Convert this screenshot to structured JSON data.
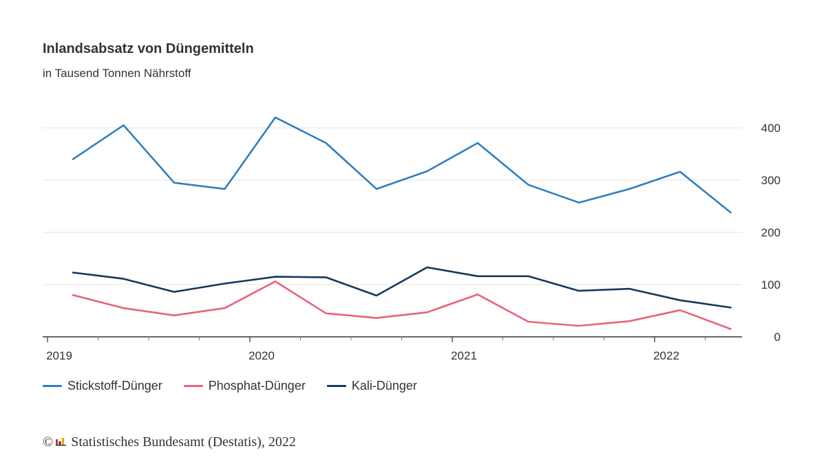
{
  "header": {
    "title": "Inlandsabsatz von Düngemitteln",
    "subtitle": "in Tausend Tonnen Nährstoff"
  },
  "footer": {
    "copyright_symbol": "©",
    "logo_icon": "destatis-logo-icon",
    "source": "Statistisches Bundesamt (Destatis), 2022"
  },
  "chart_data": {
    "type": "line",
    "title": "Inlandsabsatz von Düngemitteln",
    "subtitle": "in Tausend Tonnen Nährstoff",
    "x": [
      "2019 Q1",
      "2019 Q2",
      "2019 Q3",
      "2019 Q4",
      "2020 Q1",
      "2020 Q2",
      "2020 Q3",
      "2020 Q4",
      "2021 Q1",
      "2021 Q2",
      "2021 Q3",
      "2021 Q4",
      "2022 Q1",
      "2022 Q2"
    ],
    "x_tick_labels": [
      "2019",
      "2020",
      "2021",
      "2022"
    ],
    "y_ticks": [
      0,
      100,
      200,
      300,
      400
    ],
    "ylim": [
      0,
      400
    ],
    "y_axis_side": "right",
    "grid": true,
    "legend_position": "bottom-left",
    "series": [
      {
        "name": "Stickstoff-Dünger",
        "color": "#2e7ebf",
        "values": [
          340,
          405,
          295,
          283,
          420,
          371,
          283,
          317,
          371,
          291,
          257,
          283,
          316,
          238
        ]
      },
      {
        "name": "Phosphat-Dünger",
        "color": "#e8627a",
        "values": [
          80,
          55,
          41,
          55,
          106,
          45,
          36,
          47,
          81,
          29,
          21,
          30,
          51,
          15
        ]
      },
      {
        "name": "Kali-Dünger",
        "color": "#14375c",
        "values": [
          123,
          111,
          86,
          102,
          115,
          114,
          79,
          133,
          116,
          116,
          88,
          92,
          70,
          56
        ]
      }
    ]
  }
}
